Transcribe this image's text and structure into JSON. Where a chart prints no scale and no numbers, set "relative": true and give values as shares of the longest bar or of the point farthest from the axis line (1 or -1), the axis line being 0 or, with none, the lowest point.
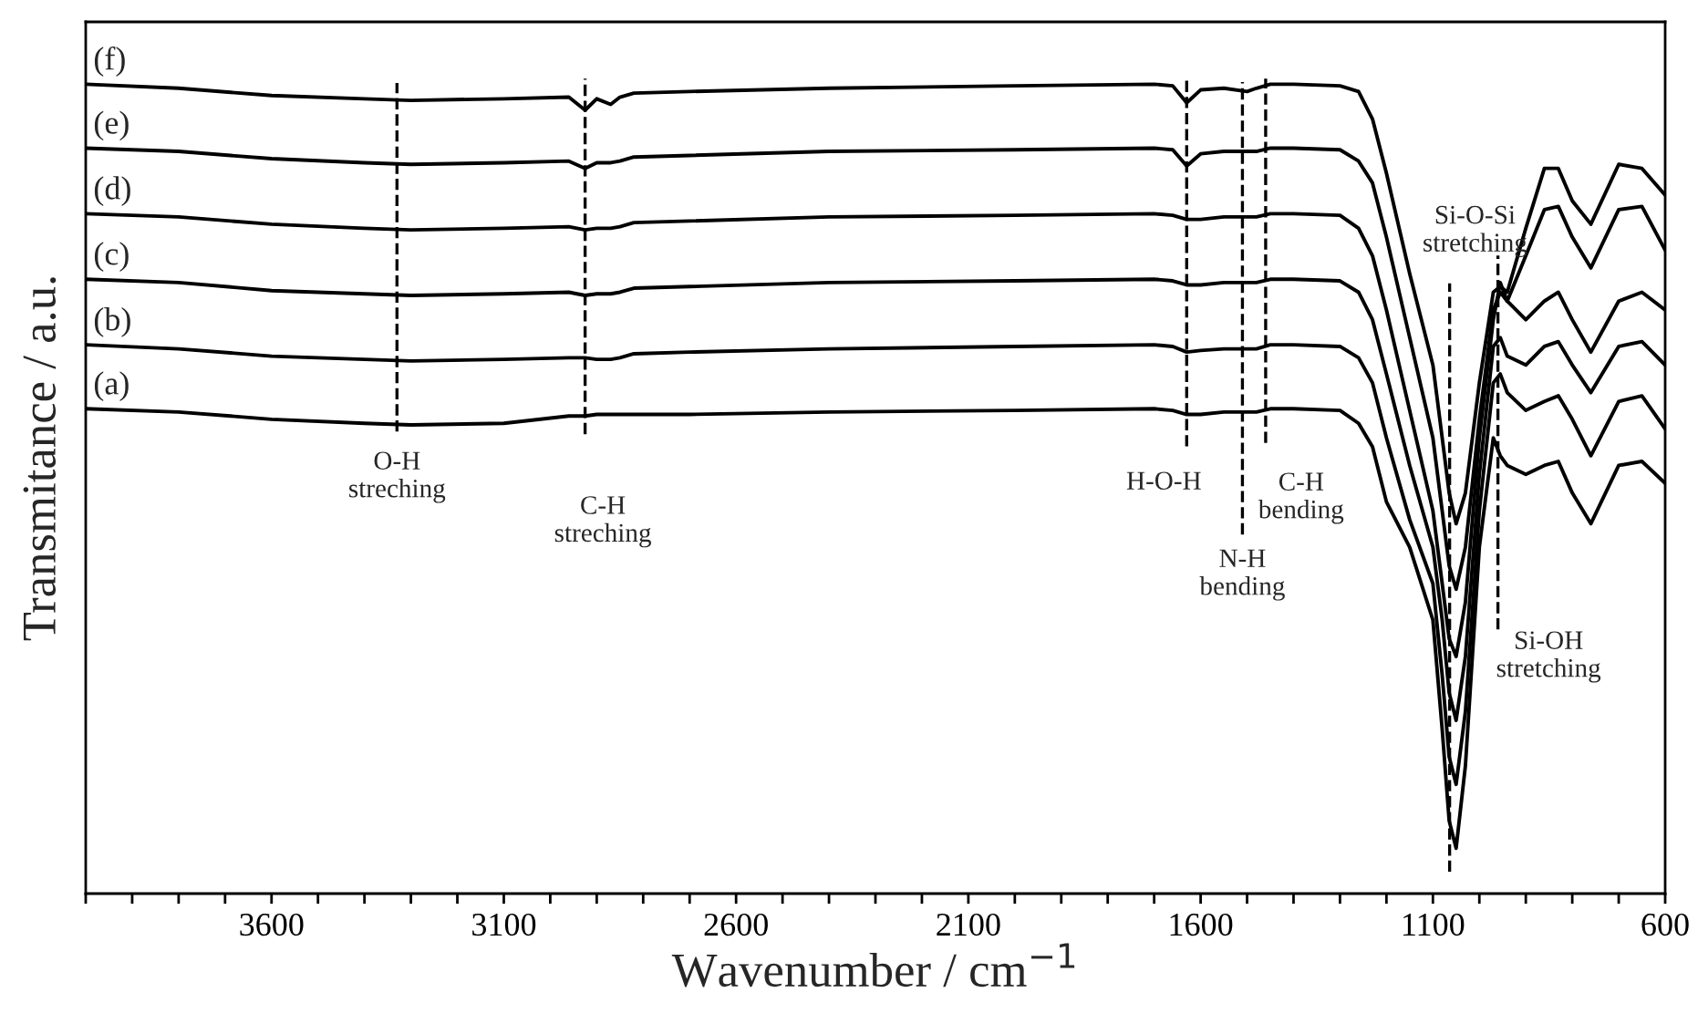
{
  "chart_data": {
    "type": "line",
    "xlabel": "Wavenumber / cm$^{−1}$",
    "ylabel": "Transmitance / a.u.",
    "relative": true,
    "tick_labels": "x",
    "grid": false,
    "xlim": [
      4000,
      600
    ],
    "xticks": [
      {
        "value": 4000,
        "label": null
      },
      {
        "value": 3900,
        "label": null
      },
      {
        "value": 3800,
        "label": null
      },
      {
        "value": 3700,
        "label": null
      },
      3600,
      {
        "value": 3500,
        "label": null
      },
      {
        "value": 3400,
        "label": null
      },
      {
        "value": 3300,
        "label": null
      },
      {
        "value": 3200,
        "label": null
      },
      3100,
      {
        "value": 3000,
        "label": null
      },
      {
        "value": 2900,
        "label": null
      },
      {
        "value": 2800,
        "label": null
      },
      {
        "value": 2700,
        "label": null
      },
      2600,
      {
        "value": 2500,
        "label": null
      },
      {
        "value": 2400,
        "label": null
      },
      {
        "value": 2300,
        "label": null
      },
      {
        "value": 2200,
        "label": null
      },
      2100,
      {
        "value": 2000,
        "label": null
      },
      {
        "value": 1900,
        "label": null
      },
      {
        "value": 1800,
        "label": null
      },
      {
        "value": 1700,
        "label": null
      },
      1600,
      {
        "value": 1500,
        "label": null
      },
      {
        "value": 1400,
        "label": null
      },
      {
        "value": 1300,
        "label": null
      },
      {
        "value": 1200,
        "label": null
      },
      1100,
      {
        "value": 1000,
        "label": null
      },
      {
        "value": 900,
        "label": null
      },
      {
        "value": 800,
        "label": null
      },
      {
        "value": 700,
        "label": null
      },
      600
    ],
    "x": [
      4000,
      3800,
      3600,
      3400,
      3300,
      3100,
      2960,
      2925,
      2900,
      2870,
      2850,
      2820,
      2700,
      2400,
      2000,
      1700,
      1660,
      1630,
      1600,
      1550,
      1500,
      1480,
      1450,
      1400,
      1300,
      1260,
      1230,
      1200,
      1150,
      1100,
      1080,
      1065,
      1050,
      1030,
      1000,
      970,
      955,
      940,
      900,
      860,
      830,
      800,
      760,
      700,
      650,
      600
    ],
    "series": [
      {
        "name": "(a)",
        "color": "#000000",
        "values": [
          0.599,
          0.595,
          0.586,
          0.581,
          0.579,
          0.581,
          0.59,
          0.59,
          0.592,
          0.592,
          0.592,
          0.592,
          0.592,
          0.595,
          0.597,
          0.599,
          0.597,
          0.592,
          0.592,
          0.595,
          0.595,
          0.595,
          0.599,
          0.599,
          0.597,
          0.581,
          0.552,
          0.484,
          0.428,
          0.338,
          0.203,
          0.09,
          0.056,
          0.158,
          0.428,
          0.563,
          0.541,
          0.529,
          0.518,
          0.529,
          0.534,
          0.495,
          0.457,
          0.529,
          0.534,
          0.507
        ]
      },
      {
        "name": "(b)",
        "color": "#000000",
        "values": [
          0.678,
          0.673,
          0.664,
          0.66,
          0.658,
          0.66,
          0.662,
          0.662,
          0.66,
          0.66,
          0.662,
          0.667,
          0.669,
          0.673,
          0.676,
          0.678,
          0.676,
          0.669,
          0.671,
          0.673,
          0.673,
          0.673,
          0.678,
          0.678,
          0.676,
          0.662,
          0.631,
          0.563,
          0.462,
          0.383,
          0.27,
          0.169,
          0.135,
          0.225,
          0.473,
          0.631,
          0.642,
          0.619,
          0.597,
          0.608,
          0.615,
          0.586,
          0.541,
          0.608,
          0.615,
          0.574
        ]
      },
      {
        "name": "(c)",
        "color": "#000000",
        "values": [
          0.759,
          0.755,
          0.745,
          0.741,
          0.739,
          0.741,
          0.743,
          0.739,
          0.741,
          0.741,
          0.743,
          0.748,
          0.75,
          0.755,
          0.757,
          0.759,
          0.757,
          0.752,
          0.752,
          0.755,
          0.755,
          0.755,
          0.759,
          0.759,
          0.757,
          0.743,
          0.709,
          0.642,
          0.529,
          0.428,
          0.338,
          0.248,
          0.214,
          0.293,
          0.518,
          0.676,
          0.687,
          0.664,
          0.653,
          0.676,
          0.682,
          0.653,
          0.619,
          0.676,
          0.682,
          0.653
        ]
      },
      {
        "name": "(d)",
        "color": "#000000",
        "values": [
          0.84,
          0.836,
          0.827,
          0.822,
          0.82,
          0.822,
          0.824,
          0.82,
          0.822,
          0.822,
          0.824,
          0.829,
          0.831,
          0.836,
          0.838,
          0.84,
          0.838,
          0.833,
          0.833,
          0.836,
          0.836,
          0.836,
          0.84,
          0.84,
          0.838,
          0.822,
          0.788,
          0.721,
          0.597,
          0.473,
          0.383,
          0.315,
          0.293,
          0.36,
          0.563,
          0.709,
          0.755,
          0.732,
          0.709,
          0.732,
          0.743,
          0.709,
          0.669,
          0.732,
          0.743,
          0.721
        ]
      },
      {
        "name": "(e)",
        "color": "#000000",
        "values": [
          0.921,
          0.917,
          0.908,
          0.903,
          0.901,
          0.903,
          0.905,
          0.896,
          0.903,
          0.903,
          0.905,
          0.91,
          0.912,
          0.917,
          0.919,
          0.921,
          0.919,
          0.899,
          0.914,
          0.917,
          0.917,
          0.917,
          0.921,
          0.921,
          0.919,
          0.905,
          0.878,
          0.811,
          0.687,
          0.563,
          0.473,
          0.405,
          0.376,
          0.428,
          0.586,
          0.721,
          0.743,
          0.732,
          0.788,
          0.845,
          0.849,
          0.811,
          0.773,
          0.845,
          0.849,
          0.795
        ]
      },
      {
        "name": "(f)",
        "color": "#000000",
        "values": [
          1,
          0.995,
          0.986,
          0.982,
          0.98,
          0.982,
          0.984,
          0.968,
          0.982,
          0.975,
          0.984,
          0.989,
          0.991,
          0.995,
          0.998,
          1,
          0.998,
          0.977,
          0.993,
          0.995,
          0.991,
          0.995,
          1,
          1,
          0.998,
          0.991,
          0.957,
          0.89,
          0.766,
          0.653,
          0.563,
          0.495,
          0.457,
          0.495,
          0.631,
          0.743,
          0.75,
          0.743,
          0.822,
          0.896,
          0.896,
          0.856,
          0.827,
          0.901,
          0.896,
          0.863
        ]
      }
    ],
    "ref_lines": [
      {
        "axis": "x",
        "value": 3330,
        "label": "O-H\nstreching",
        "line_style": "dashed",
        "color": "#000000"
      },
      {
        "axis": "x",
        "value": 2925,
        "label": "C-H\nstreching",
        "line_style": "dashed",
        "color": "#000000"
      },
      {
        "axis": "x",
        "value": 1630,
        "label": "H-O-H",
        "line_style": "dashed",
        "color": "#000000"
      },
      {
        "axis": "x",
        "value": 1510,
        "label": "N-H\nbending",
        "line_style": "dashed",
        "color": "#000000"
      },
      {
        "axis": "x",
        "value": 1460,
        "label": "C-H\nbending",
        "line_style": "dashed",
        "color": "#000000"
      },
      {
        "axis": "x",
        "value": 1064,
        "label": "Si-O-Si\nstretching",
        "line_style": "dashed",
        "color": "#000000"
      },
      {
        "axis": "x",
        "value": 960,
        "label": "Si-OH\nstretching",
        "line_style": "dashed",
        "color": "#000000"
      }
    ]
  }
}
